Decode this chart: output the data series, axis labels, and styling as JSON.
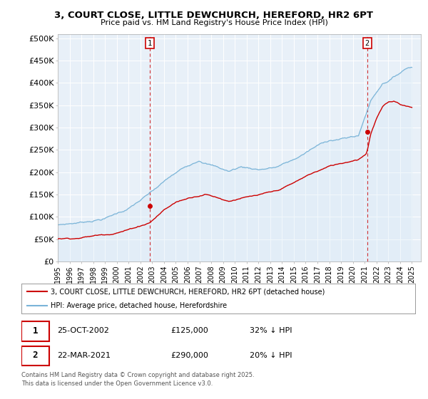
{
  "title": "3, COURT CLOSE, LITTLE DEWCHURCH, HEREFORD, HR2 6PT",
  "subtitle": "Price paid vs. HM Land Registry's House Price Index (HPI)",
  "ylabel_ticks": [
    "£0",
    "£50K",
    "£100K",
    "£150K",
    "£200K",
    "£250K",
    "£300K",
    "£350K",
    "£400K",
    "£450K",
    "£500K"
  ],
  "ytick_values": [
    0,
    50000,
    100000,
    150000,
    200000,
    250000,
    300000,
    350000,
    400000,
    450000,
    500000
  ],
  "ylim": [
    0,
    510000
  ],
  "xlim_start": 1995,
  "xlim_end": 2025.75,
  "hpi_color": "#7ab4d8",
  "hpi_fill_color": "#d6e8f5",
  "price_color": "#cc0000",
  "transaction1": {
    "date": "25-OCT-2002",
    "price": 125000,
    "label": "1",
    "x": 2002.81,
    "hpi_pct": "32% ↓ HPI"
  },
  "transaction2": {
    "date": "22-MAR-2021",
    "price": 290000,
    "label": "2",
    "x": 2021.22,
    "hpi_pct": "20% ↓ HPI"
  },
  "legend_line1": "3, COURT CLOSE, LITTLE DEWCHURCH, HEREFORD, HR2 6PT (detached house)",
  "legend_line2": "HPI: Average price, detached house, Herefordshire",
  "footer": "Contains HM Land Registry data © Crown copyright and database right 2025.\nThis data is licensed under the Open Government Licence v3.0.",
  "background_color": "#ffffff",
  "chart_bg_color": "#e8f0f8",
  "grid_color": "#ffffff"
}
